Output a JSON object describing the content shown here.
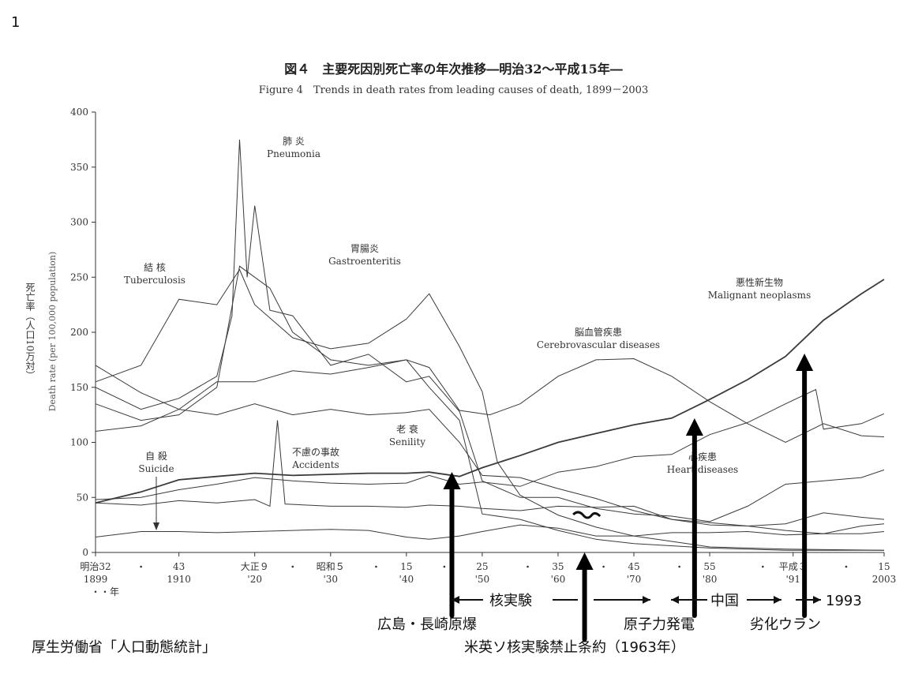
{
  "page_number": "1",
  "title_jp": "図４　主要死因別死亡率の年次推移―明治32～平成15年―",
  "title_en": "Figure 4　Trends in death rates from leading causes of death, 1899－2003",
  "source": "厚生労働省「人口動態統計」",
  "chart_data": {
    "type": "line",
    "title": "図４　主要死因別死亡率の年次推移―明治32～平成15年―",
    "subtitle": "Figure 4　Trends in death rates from leading causes of death, 1899－2003",
    "ylabel_jp": "死亡率（人口10万対）",
    "ylabel_en": "Death rate (per 100,000 population)",
    "ylim": [
      0,
      400
    ],
    "xlim": [
      1899,
      2003
    ],
    "yticks": [
      0,
      50,
      100,
      150,
      200,
      250,
      300,
      350,
      400
    ],
    "xticks": [
      {
        "year": 1899,
        "top": "明治32",
        "bottom": "1899"
      },
      {
        "year": 1910,
        "top": "43",
        "bottom": "1910"
      },
      {
        "year": 1920,
        "top": "大正９",
        "bottom": "'20"
      },
      {
        "year": 1930,
        "top": "昭和５",
        "bottom": "'30"
      },
      {
        "year": 1940,
        "top": "15",
        "bottom": "'40"
      },
      {
        "year": 1950,
        "top": "25",
        "bottom": "'50"
      },
      {
        "year": 1960,
        "top": "35",
        "bottom": "'60"
      },
      {
        "year": 1970,
        "top": "45",
        "bottom": "'70"
      },
      {
        "year": 1980,
        "top": "55",
        "bottom": "'80"
      },
      {
        "year": 1991,
        "top": "平成３",
        "bottom": "'91"
      },
      {
        "year": 2003,
        "top": "15",
        "bottom": "2003"
      }
    ],
    "x_unit_label": "・・年",
    "series": [
      {
        "name_jp": "結 核",
        "name_en": "Tuberculosis",
        "points": [
          [
            1899,
            155
          ],
          [
            1905,
            170
          ],
          [
            1910,
            230
          ],
          [
            1915,
            225
          ],
          [
            1918,
            257
          ],
          [
            1920,
            225
          ],
          [
            1925,
            195
          ],
          [
            1930,
            185
          ],
          [
            1935,
            190
          ],
          [
            1940,
            212
          ],
          [
            1943,
            235
          ],
          [
            1947,
            187
          ],
          [
            1950,
            146
          ],
          [
            1952,
            82
          ],
          [
            1955,
            52
          ],
          [
            1960,
            34
          ],
          [
            1965,
            23
          ],
          [
            1970,
            15
          ],
          [
            1975,
            10
          ],
          [
            1980,
            5
          ],
          [
            1990,
            3
          ],
          [
            2003,
            2
          ]
        ]
      },
      {
        "name_jp": "肺 炎",
        "name_en": "Pneumonia",
        "points": [
          [
            1899,
            150
          ],
          [
            1905,
            130
          ],
          [
            1910,
            140
          ],
          [
            1915,
            160
          ],
          [
            1917,
            215
          ],
          [
            1918,
            375
          ],
          [
            1919,
            250
          ],
          [
            1920,
            315
          ],
          [
            1922,
            220
          ],
          [
            1925,
            215
          ],
          [
            1930,
            170
          ],
          [
            1935,
            180
          ],
          [
            1940,
            155
          ],
          [
            1943,
            160
          ],
          [
            1947,
            128
          ],
          [
            1950,
            65
          ],
          [
            1955,
            50
          ],
          [
            1960,
            50
          ],
          [
            1965,
            40
          ],
          [
            1970,
            35
          ],
          [
            1975,
            33
          ],
          [
            1980,
            28
          ],
          [
            1985,
            42
          ],
          [
            1990,
            62
          ],
          [
            1995,
            65
          ],
          [
            2000,
            68
          ],
          [
            2003,
            75
          ]
        ]
      },
      {
        "name_jp": "胃腸炎",
        "name_en": "Gastroenteritis",
        "points": [
          [
            1899,
            135
          ],
          [
            1905,
            120
          ],
          [
            1910,
            125
          ],
          [
            1915,
            150
          ],
          [
            1918,
            260
          ],
          [
            1922,
            240
          ],
          [
            1925,
            200
          ],
          [
            1930,
            175
          ],
          [
            1935,
            170
          ],
          [
            1940,
            175
          ],
          [
            1943,
            150
          ],
          [
            1947,
            120
          ],
          [
            1950,
            35
          ],
          [
            1955,
            30
          ],
          [
            1960,
            20
          ],
          [
            1965,
            12
          ],
          [
            1970,
            8
          ],
          [
            1980,
            4
          ],
          [
            1990,
            2
          ],
          [
            2003,
            2
          ]
        ]
      },
      {
        "name_jp": "脳血管疾患",
        "name_en": "Cerebrovascular diseases",
        "points": [
          [
            1899,
            170
          ],
          [
            1905,
            145
          ],
          [
            1910,
            130
          ],
          [
            1915,
            155
          ],
          [
            1920,
            155
          ],
          [
            1925,
            165
          ],
          [
            1930,
            162
          ],
          [
            1935,
            168
          ],
          [
            1940,
            175
          ],
          [
            1943,
            168
          ],
          [
            1947,
            129
          ],
          [
            1951,
            125
          ],
          [
            1955,
            135
          ],
          [
            1960,
            160
          ],
          [
            1965,
            175
          ],
          [
            1970,
            176
          ],
          [
            1975,
            160
          ],
          [
            1980,
            137
          ],
          [
            1985,
            117
          ],
          [
            1990,
            100
          ],
          [
            1995,
            117
          ],
          [
            2000,
            106
          ],
          [
            2003,
            105
          ]
        ]
      },
      {
        "name_jp": "老 衰",
        "name_en": "Senility",
        "points": [
          [
            1899,
            110
          ],
          [
            1905,
            115
          ],
          [
            1910,
            130
          ],
          [
            1915,
            125
          ],
          [
            1920,
            135
          ],
          [
            1925,
            125
          ],
          [
            1930,
            130
          ],
          [
            1935,
            125
          ],
          [
            1940,
            127
          ],
          [
            1943,
            130
          ],
          [
            1947,
            100
          ],
          [
            1950,
            70
          ],
          [
            1955,
            68
          ],
          [
            1960,
            58
          ],
          [
            1965,
            49
          ],
          [
            1970,
            38
          ],
          [
            1975,
            30
          ],
          [
            1980,
            27
          ],
          [
            1985,
            24
          ],
          [
            1990,
            20
          ],
          [
            1995,
            17
          ],
          [
            2000,
            17
          ],
          [
            2003,
            19
          ]
        ]
      },
      {
        "name_jp": "悪性新生物",
        "name_en": "Malignant neoplasms",
        "points": [
          [
            1899,
            45
          ],
          [
            1905,
            55
          ],
          [
            1910,
            66
          ],
          [
            1915,
            69
          ],
          [
            1920,
            72
          ],
          [
            1925,
            70
          ],
          [
            1930,
            71
          ],
          [
            1935,
            72
          ],
          [
            1940,
            72
          ],
          [
            1943,
            73
          ],
          [
            1947,
            69
          ],
          [
            1950,
            77
          ],
          [
            1955,
            88
          ],
          [
            1960,
            100
          ],
          [
            1965,
            108
          ],
          [
            1970,
            116
          ],
          [
            1975,
            122
          ],
          [
            1980,
            139
          ],
          [
            1985,
            157
          ],
          [
            1990,
            178
          ],
          [
            1995,
            211
          ],
          [
            2000,
            235
          ],
          [
            2003,
            248
          ]
        ]
      },
      {
        "name_jp": "心疾患",
        "name_en": "Heart diseases",
        "points": [
          [
            1899,
            48
          ],
          [
            1905,
            50
          ],
          [
            1910,
            57
          ],
          [
            1915,
            62
          ],
          [
            1920,
            68
          ],
          [
            1925,
            65
          ],
          [
            1930,
            63
          ],
          [
            1935,
            62
          ],
          [
            1940,
            63
          ],
          [
            1943,
            70
          ],
          [
            1947,
            62
          ],
          [
            1950,
            64
          ],
          [
            1955,
            60
          ],
          [
            1960,
            73
          ],
          [
            1965,
            78
          ],
          [
            1970,
            87
          ],
          [
            1975,
            89
          ],
          [
            1980,
            107
          ],
          [
            1985,
            118
          ],
          [
            1990,
            135
          ],
          [
            1994,
            148
          ],
          [
            1995,
            112
          ],
          [
            2000,
            117
          ],
          [
            2003,
            126
          ]
        ]
      },
      {
        "name_jp": "不慮の事故",
        "name_en": "Accidents",
        "points": [
          [
            1899,
            45
          ],
          [
            1905,
            43
          ],
          [
            1910,
            47
          ],
          [
            1915,
            45
          ],
          [
            1920,
            48
          ],
          [
            1922,
            42
          ],
          [
            1923,
            120
          ],
          [
            1924,
            44
          ],
          [
            1930,
            42
          ],
          [
            1935,
            42
          ],
          [
            1940,
            41
          ],
          [
            1943,
            43
          ],
          [
            1947,
            42
          ],
          [
            1950,
            40
          ],
          [
            1955,
            38
          ],
          [
            1960,
            42
          ],
          [
            1965,
            41
          ],
          [
            1970,
            42
          ],
          [
            1975,
            30
          ],
          [
            1980,
            25
          ],
          [
            1985,
            24
          ],
          [
            1990,
            26
          ],
          [
            1995,
            36
          ],
          [
            2000,
            32
          ],
          [
            2003,
            30
          ]
        ]
      },
      {
        "name_jp": "自 殺",
        "name_en": "Suicide",
        "points": [
          [
            1899,
            14
          ],
          [
            1905,
            19
          ],
          [
            1910,
            19
          ],
          [
            1915,
            18
          ],
          [
            1920,
            19
          ],
          [
            1925,
            20
          ],
          [
            1930,
            21
          ],
          [
            1935,
            20
          ],
          [
            1940,
            14
          ],
          [
            1943,
            12
          ],
          [
            1947,
            15
          ],
          [
            1950,
            19
          ],
          [
            1955,
            25
          ],
          [
            1960,
            22
          ],
          [
            1965,
            15
          ],
          [
            1970,
            15
          ],
          [
            1975,
            18
          ],
          [
            1980,
            18
          ],
          [
            1985,
            19
          ],
          [
            1990,
            16
          ],
          [
            1995,
            17
          ],
          [
            2000,
            24
          ],
          [
            2003,
            26
          ]
        ]
      }
    ]
  },
  "annotations": {
    "hiroshima": "広島・長崎原爆",
    "nuclear_tests": "核実験",
    "test_ban": "米英ソ核実験禁止条約（1963年）",
    "nuclear_power": "原子力発電",
    "china": "中国",
    "depleted_uranium": "劣化ウラン",
    "year_1993": "1993"
  },
  "colors": {
    "ink": "#222222",
    "line": "#3a3a3a",
    "marker": "#000000"
  }
}
